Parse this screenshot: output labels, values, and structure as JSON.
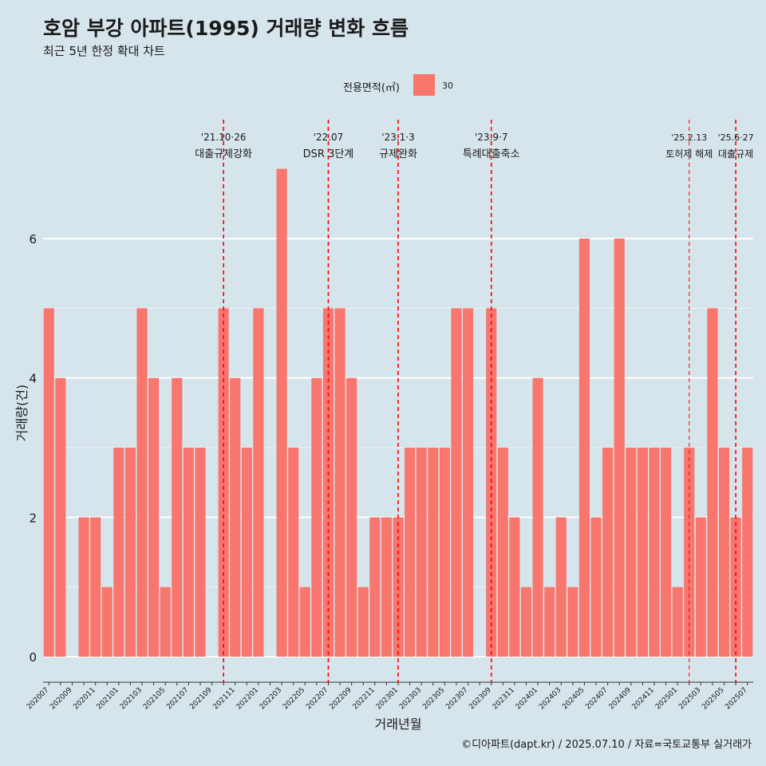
{
  "title": "호암 부강 아파트(1995) 거래량 변화 흐름",
  "subtitle": "최근 5년 한정 확대 차트",
  "caption": "©디아파트(dapt.kr) / 2025.07.10 / 자료=국토교통부 실거래가",
  "legend": {
    "title": "전용면적(㎡)",
    "items": [
      "30"
    ]
  },
  "colors": {
    "bar": "#f8766d",
    "event_line": "#ff0000",
    "background": "#d6e4eb",
    "grid": "#ffffff"
  },
  "chart_data": {
    "type": "bar",
    "xlabel": "거래년월",
    "ylabel": "거래량(건)",
    "ylim": [
      0,
      7
    ],
    "yticks": [
      0,
      2,
      4,
      6
    ],
    "grid": true,
    "legend_position": "top",
    "categories": [
      "202007",
      "202008",
      "202009",
      "202010",
      "202011",
      "202012",
      "202101",
      "202102",
      "202103",
      "202104",
      "202105",
      "202106",
      "202107",
      "202108",
      "202109",
      "202110",
      "202111",
      "202112",
      "202201",
      "202202",
      "202203",
      "202204",
      "202205",
      "202206",
      "202207",
      "202208",
      "202209",
      "202210",
      "202211",
      "202212",
      "202301",
      "202302",
      "202303",
      "202304",
      "202305",
      "202306",
      "202307",
      "202308",
      "202309",
      "202310",
      "202311",
      "202312",
      "202401",
      "202402",
      "202403",
      "202404",
      "202405",
      "202406",
      "202407",
      "202408",
      "202409",
      "202410",
      "202411",
      "202412",
      "202501",
      "202502",
      "202503",
      "202504",
      "202505",
      "202506",
      "202507"
    ],
    "series": [
      {
        "name": "30",
        "values": [
          5,
          4,
          0,
          2,
          2,
          1,
          3,
          3,
          5,
          4,
          1,
          4,
          3,
          3,
          0,
          5,
          4,
          3,
          5,
          0,
          7,
          3,
          1,
          4,
          5,
          5,
          4,
          1,
          2,
          2,
          2,
          3,
          3,
          3,
          3,
          5,
          5,
          0,
          5,
          3,
          2,
          1,
          4,
          1,
          2,
          1,
          6,
          2,
          3,
          6,
          3,
          3,
          3,
          3,
          1,
          3,
          2,
          5,
          3,
          2,
          3
        ]
      }
    ],
    "annotations": [
      {
        "category": "202110",
        "date": "'21.10·26",
        "label": "대출규제강화"
      },
      {
        "category": "202207",
        "date": "'22.07",
        "label": "DSR 3단계"
      },
      {
        "category": "202301",
        "date": "'23.1·3",
        "label": "규제완화"
      },
      {
        "category": "202309",
        "date": "'23.9·7",
        "label": "특례대출축소"
      },
      {
        "category": "202502",
        "date": "'25.2.13",
        "label": "토허제 해제"
      },
      {
        "category": "202506",
        "date": "'25.6·27",
        "label": "대출규제"
      }
    ]
  }
}
